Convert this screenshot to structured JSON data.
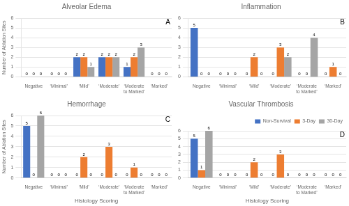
{
  "chart_data": [
    {
      "type": "bar",
      "title": "Alveolar Edema",
      "annotation": "A",
      "categories": [
        "Negative",
        "‘Minimal’",
        "‘Mild’",
        "‘Moderate’",
        "‘Moderate\nto Marked’",
        "‘Marked’"
      ],
      "series": [
        {
          "name": "Non-Survival",
          "color": "#4472C4",
          "values": [
            0,
            0,
            2,
            2,
            1,
            0
          ]
        },
        {
          "name": "3-Day",
          "color": "#ED7D31",
          "values": [
            0,
            0,
            2,
            2,
            2,
            0
          ]
        },
        {
          "name": "30-Day",
          "color": "#A5A5A5",
          "values": [
            0,
            0,
            1,
            2,
            3,
            0
          ]
        }
      ],
      "ylabel": "Number of Ablation Sites",
      "ylim": [
        0,
        6
      ],
      "yticks": [
        0,
        1,
        2,
        3,
        4,
        5,
        6
      ],
      "grid": true,
      "data_labels": true
    },
    {
      "type": "bar",
      "title": "Inflammation",
      "annotation": "B",
      "categories": [
        "Negative",
        "‘Minimal’",
        "‘Mild’",
        "‘Moderate’",
        "‘Moderate\nto Marked’",
        "‘Marked’"
      ],
      "series": [
        {
          "name": "Non-Survival",
          "color": "#4472C4",
          "values": [
            5,
            0,
            0,
            0,
            0,
            0
          ]
        },
        {
          "name": "3-Day",
          "color": "#ED7D31",
          "values": [
            0,
            0,
            2,
            3,
            0,
            1
          ]
        },
        {
          "name": "30-Day",
          "color": "#A5A5A5",
          "values": [
            0,
            0,
            0,
            2,
            4,
            0
          ]
        }
      ],
      "ylim": [
        0,
        6
      ],
      "yticks": [
        0,
        1,
        2,
        3,
        4,
        5,
        6
      ],
      "grid": true,
      "data_labels": true
    },
    {
      "type": "bar",
      "title": "Hemorrhage",
      "annotation": "C",
      "categories": [
        "Negative",
        "‘Minimal’",
        "‘Mild’",
        "‘Moderate’",
        "‘Moderate\nto Marked’",
        "‘Marked’"
      ],
      "series": [
        {
          "name": "Non-Survival",
          "color": "#4472C4",
          "values": [
            5,
            0,
            0,
            0,
            0,
            0
          ]
        },
        {
          "name": "3-Day",
          "color": "#ED7D31",
          "values": [
            0,
            0,
            2,
            3,
            1,
            0
          ]
        },
        {
          "name": "30-Day",
          "color": "#A5A5A5",
          "values": [
            6,
            0,
            0,
            0,
            0,
            0
          ]
        }
      ],
      "ylabel": "Number of Ablation Sites",
      "xlabel": "Histology Scoring",
      "ylim": [
        0,
        6
      ],
      "yticks": [
        0,
        1,
        2,
        3,
        4,
        5,
        6
      ],
      "grid": true,
      "data_labels": true
    },
    {
      "type": "bar",
      "title": "Vascular Thrombosis",
      "annotation": "D",
      "categories": [
        "Negative",
        "‘Minimal’",
        "‘Mild’",
        "‘Moderate’",
        "‘Moderate\nto Marked’",
        "‘Marked’"
      ],
      "series": [
        {
          "name": "Non-Survival",
          "color": "#4472C4",
          "values": [
            5,
            0,
            0,
            0,
            0,
            0
          ]
        },
        {
          "name": "3-Day",
          "color": "#ED7D31",
          "values": [
            1,
            0,
            2,
            3,
            0,
            0
          ]
        },
        {
          "name": "30-Day",
          "color": "#A5A5A5",
          "values": [
            6,
            0,
            0,
            0,
            0,
            0
          ]
        }
      ],
      "xlabel": "Histology Scoring",
      "ylim": [
        0,
        6
      ],
      "yticks": [
        0,
        1,
        2,
        3,
        4,
        5,
        6
      ],
      "grid": true,
      "data_labels": true,
      "legend": "upper right"
    }
  ]
}
